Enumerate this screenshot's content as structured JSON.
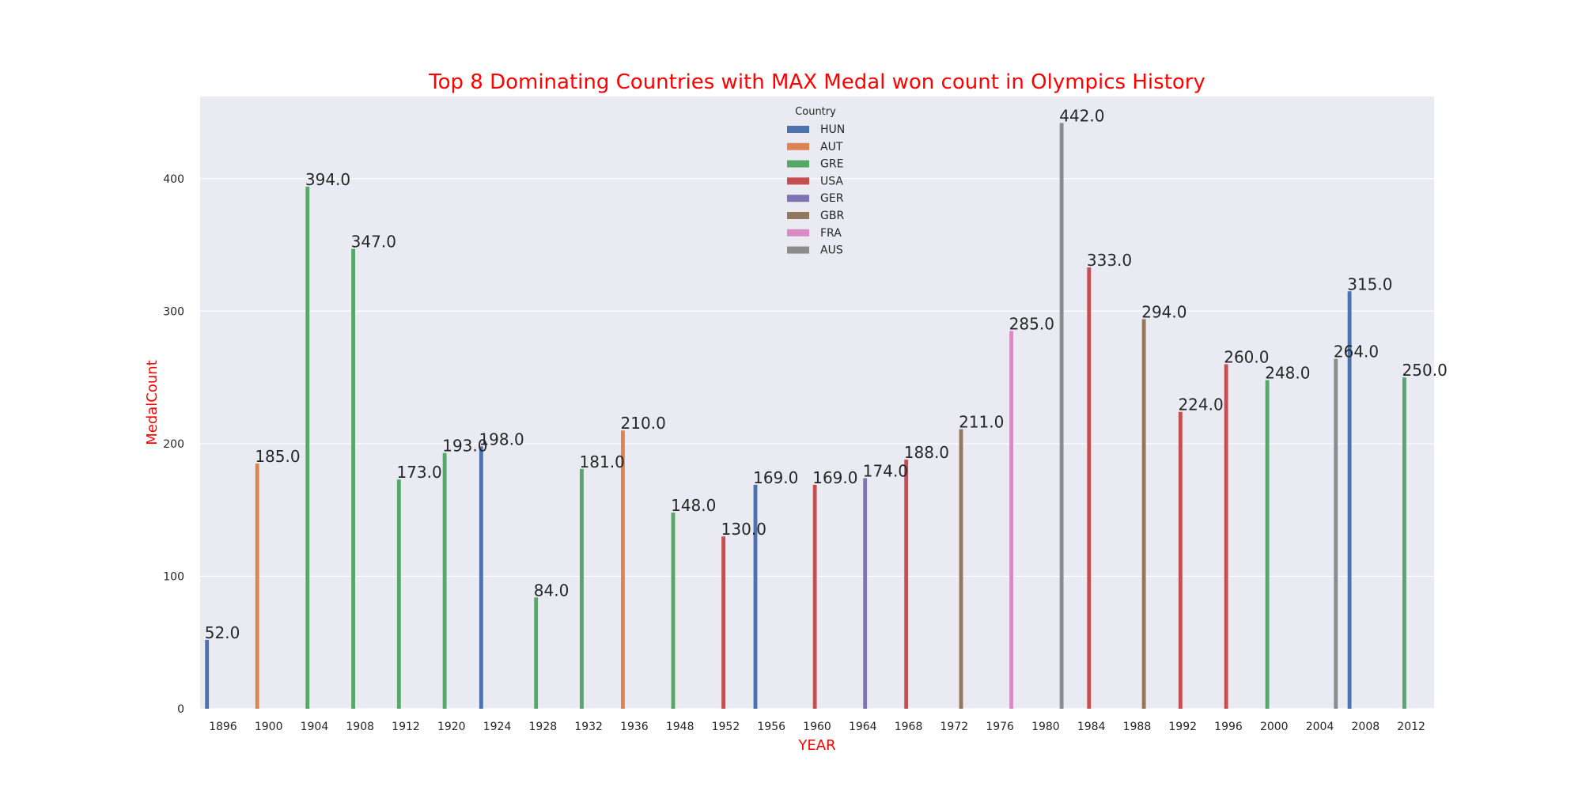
{
  "chart_data": {
    "type": "bar",
    "title": "Top 8 Dominating Countries with MAX Medal won count in Olympics History",
    "xlabel": "YEAR",
    "ylabel": "MedalCount",
    "ylim": [
      0,
      462
    ],
    "yticks": [
      0,
      100,
      200,
      300,
      400
    ],
    "grid": true,
    "legend_title": "Country",
    "legend_position": "top-center",
    "categories": [
      "1896",
      "1900",
      "1904",
      "1908",
      "1912",
      "1920",
      "1924",
      "1928",
      "1932",
      "1936",
      "1948",
      "1952",
      "1956",
      "1960",
      "1964",
      "1968",
      "1972",
      "1976",
      "1980",
      "1984",
      "1988",
      "1992",
      "1996",
      "2000",
      "2004",
      "2008",
      "2012"
    ],
    "series": [
      {
        "name": "HUN",
        "color": "#4c72b0"
      },
      {
        "name": "AUT",
        "color": "#dd8452"
      },
      {
        "name": "GRE",
        "color": "#55a868"
      },
      {
        "name": "USA",
        "color": "#c44e52"
      },
      {
        "name": "GER",
        "color": "#8172b3"
      },
      {
        "name": "GBR",
        "color": "#937860"
      },
      {
        "name": "FRA",
        "color": "#da8bc3"
      },
      {
        "name": "AUS",
        "color": "#8c8c8c"
      }
    ],
    "bars": [
      {
        "year": "1896",
        "country": "HUN",
        "value": 52.0,
        "label": "52.0"
      },
      {
        "year": "1900",
        "country": "AUT",
        "value": 185.0,
        "label": "185.0"
      },
      {
        "year": "1904",
        "country": "GRE",
        "value": 394.0,
        "label": "394.0"
      },
      {
        "year": "1908",
        "country": "GRE",
        "value": 347.0,
        "label": "347.0"
      },
      {
        "year": "1912",
        "country": "GRE",
        "value": 173.0,
        "label": "173.0"
      },
      {
        "year": "1920",
        "country": "GRE",
        "value": 193.0,
        "label": "193.0"
      },
      {
        "year": "1924",
        "country": "HUN",
        "value": 198.0,
        "label": "198.0"
      },
      {
        "year": "1928",
        "country": "GRE",
        "value": 84.0,
        "label": "84.0"
      },
      {
        "year": "1932",
        "country": "GRE",
        "value": 181.0,
        "label": "181.0"
      },
      {
        "year": "1936",
        "country": "AUT",
        "value": 210.0,
        "label": "210.0"
      },
      {
        "year": "1948",
        "country": "GRE",
        "value": 148.0,
        "label": "148.0"
      },
      {
        "year": "1952",
        "country": "USA",
        "value": 130.0,
        "label": "130.0"
      },
      {
        "year": "1956",
        "country": "HUN",
        "value": 169.0,
        "label": "169.0"
      },
      {
        "year": "1960",
        "country": "USA",
        "value": 169.0,
        "label": "169.0"
      },
      {
        "year": "1964",
        "country": "GER",
        "value": 174.0,
        "label": "174.0"
      },
      {
        "year": "1968",
        "country": "USA",
        "value": 188.0,
        "label": "188.0"
      },
      {
        "year": "1972",
        "country": "GBR",
        "value": 211.0,
        "label": "211.0"
      },
      {
        "year": "1976",
        "country": "FRA",
        "value": 285.0,
        "label": "285.0"
      },
      {
        "year": "1980",
        "country": "AUS",
        "value": 442.0,
        "label": "442.0"
      },
      {
        "year": "1984",
        "country": "USA",
        "value": 333.0,
        "label": "333.0"
      },
      {
        "year": "1988",
        "country": "GBR",
        "value": 294.0,
        "label": "294.0"
      },
      {
        "year": "1992",
        "country": "USA",
        "value": 224.0,
        "label": "224.0"
      },
      {
        "year": "1996",
        "country": "USA",
        "value": 260.0,
        "label": "260.0"
      },
      {
        "year": "2000",
        "country": "GRE",
        "value": 248.0,
        "label": "248.0"
      },
      {
        "year": "2004",
        "country": "AUS",
        "value": 264.0,
        "label": "264.0"
      },
      {
        "year": "2008",
        "country": "HUN",
        "value": 315.0,
        "label": "315.0"
      },
      {
        "year": "2012",
        "country": "GRE",
        "value": 250.0,
        "label": "250.0"
      }
    ],
    "colors": {
      "title": "#ff0000",
      "axis_titles": "#ff0000",
      "plot_background": "#eaeaf2",
      "grid": "#ffffff"
    }
  }
}
